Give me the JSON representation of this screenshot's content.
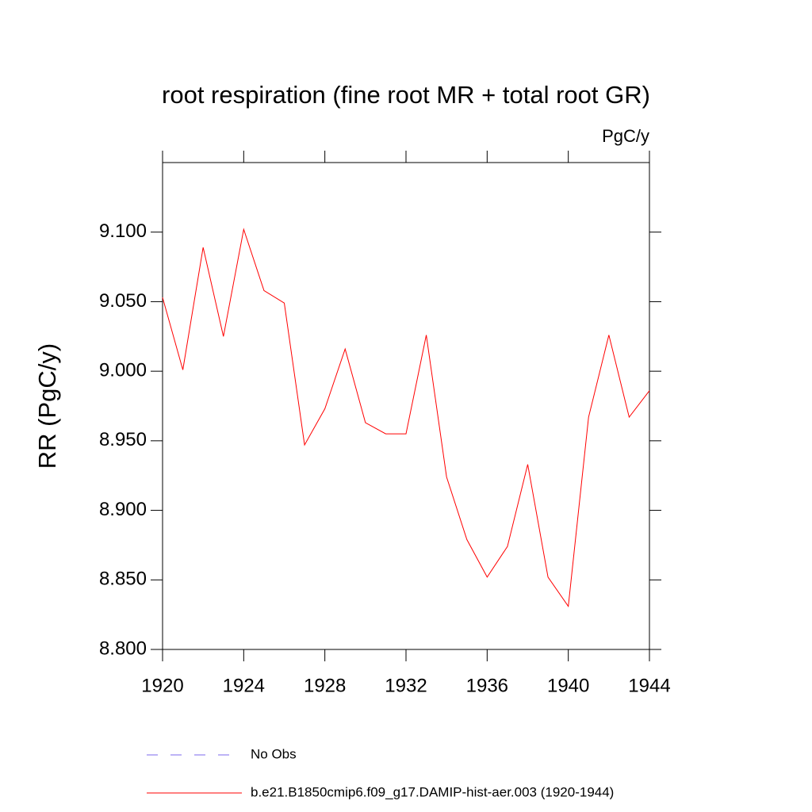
{
  "chart_data": {
    "type": "line",
    "title": "root respiration (fine root MR + total root GR)",
    "units": "PgC/y",
    "ylabel": "RR  (PgC/y)",
    "x": [
      1920,
      1921,
      1922,
      1923,
      1924,
      1925,
      1926,
      1927,
      1928,
      1929,
      1930,
      1931,
      1932,
      1933,
      1934,
      1935,
      1936,
      1937,
      1938,
      1939,
      1940,
      1941,
      1942,
      1943,
      1944
    ],
    "series": [
      {
        "name": "b.e21.B1850cmip6.f09_g17.DAMIP-hist-aer.003 (1920-1944)",
        "color": "#ff0000",
        "values": [
          9.053,
          9.001,
          9.089,
          9.025,
          9.102,
          9.058,
          9.049,
          8.947,
          8.973,
          9.016,
          8.963,
          8.955,
          8.955,
          9.026,
          8.924,
          8.879,
          8.852,
          8.874,
          8.933,
          8.852,
          8.831,
          8.967,
          9.026,
          8.967,
          8.986
        ]
      }
    ],
    "reference": {
      "name": "No Obs",
      "color": "#7b68ee"
    },
    "xlim": [
      1920,
      1944
    ],
    "xticks": [
      1920,
      1924,
      1928,
      1932,
      1936,
      1940,
      1944
    ],
    "ylim": [
      8.8,
      9.15
    ],
    "yticks": [
      {
        "value": 8.8,
        "label": "8.800"
      },
      {
        "value": 8.85,
        "label": "8.850"
      },
      {
        "value": 8.9,
        "label": "8.900"
      },
      {
        "value": 8.95,
        "label": "8.950"
      },
      {
        "value": 9.0,
        "label": "9.000"
      },
      {
        "value": 9.05,
        "label": "9.050"
      },
      {
        "value": 9.1,
        "label": "9.100"
      }
    ]
  }
}
